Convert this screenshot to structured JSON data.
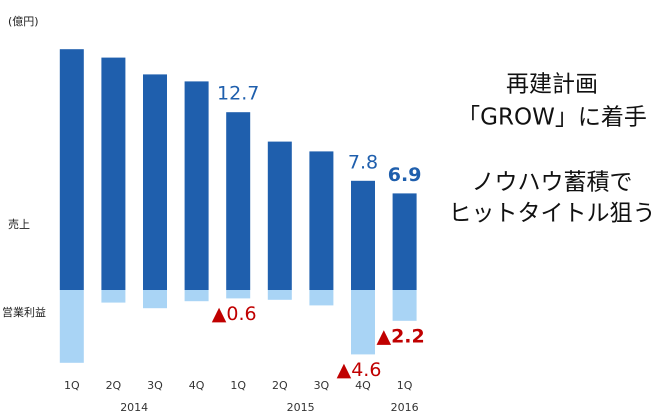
{
  "chart_data": {
    "type": "bar",
    "unit": "(億円)",
    "categories": [
      "1Q",
      "2Q",
      "3Q",
      "4Q",
      "1Q",
      "2Q",
      "3Q",
      "4Q",
      "1Q"
    ],
    "groups": [
      {
        "label": "2014",
        "size": 4
      },
      {
        "label": "2015",
        "size": 4
      },
      {
        "label": "2016",
        "size": 1
      }
    ],
    "series": [
      {
        "name": "売上",
        "color": "#1f5fad",
        "label_color": "#1f5fad",
        "values": [
          17.2,
          16.6,
          15.4,
          14.9,
          12.7,
          10.6,
          9.9,
          7.8,
          6.9
        ],
        "value_labels": [
          null,
          null,
          null,
          null,
          "12.7",
          null,
          null,
          "7.8",
          "6.9"
        ]
      },
      {
        "name": "営業利益",
        "color": "#a9d4f5",
        "label_color": "#c00000",
        "values": [
          -5.2,
          -0.9,
          -1.3,
          -0.8,
          -0.6,
          -0.7,
          -1.1,
          -4.6,
          -2.2
        ],
        "value_labels": [
          null,
          null,
          null,
          null,
          "▲0.6",
          null,
          null,
          "▲4.6",
          "▲2.2"
        ]
      }
    ],
    "ylim": [
      -6,
      17.5
    ],
    "annotations": [
      "再建計画",
      "「GROW」に着手",
      "ノウハウ蓄積で",
      "ヒットタイトル狙う"
    ]
  }
}
